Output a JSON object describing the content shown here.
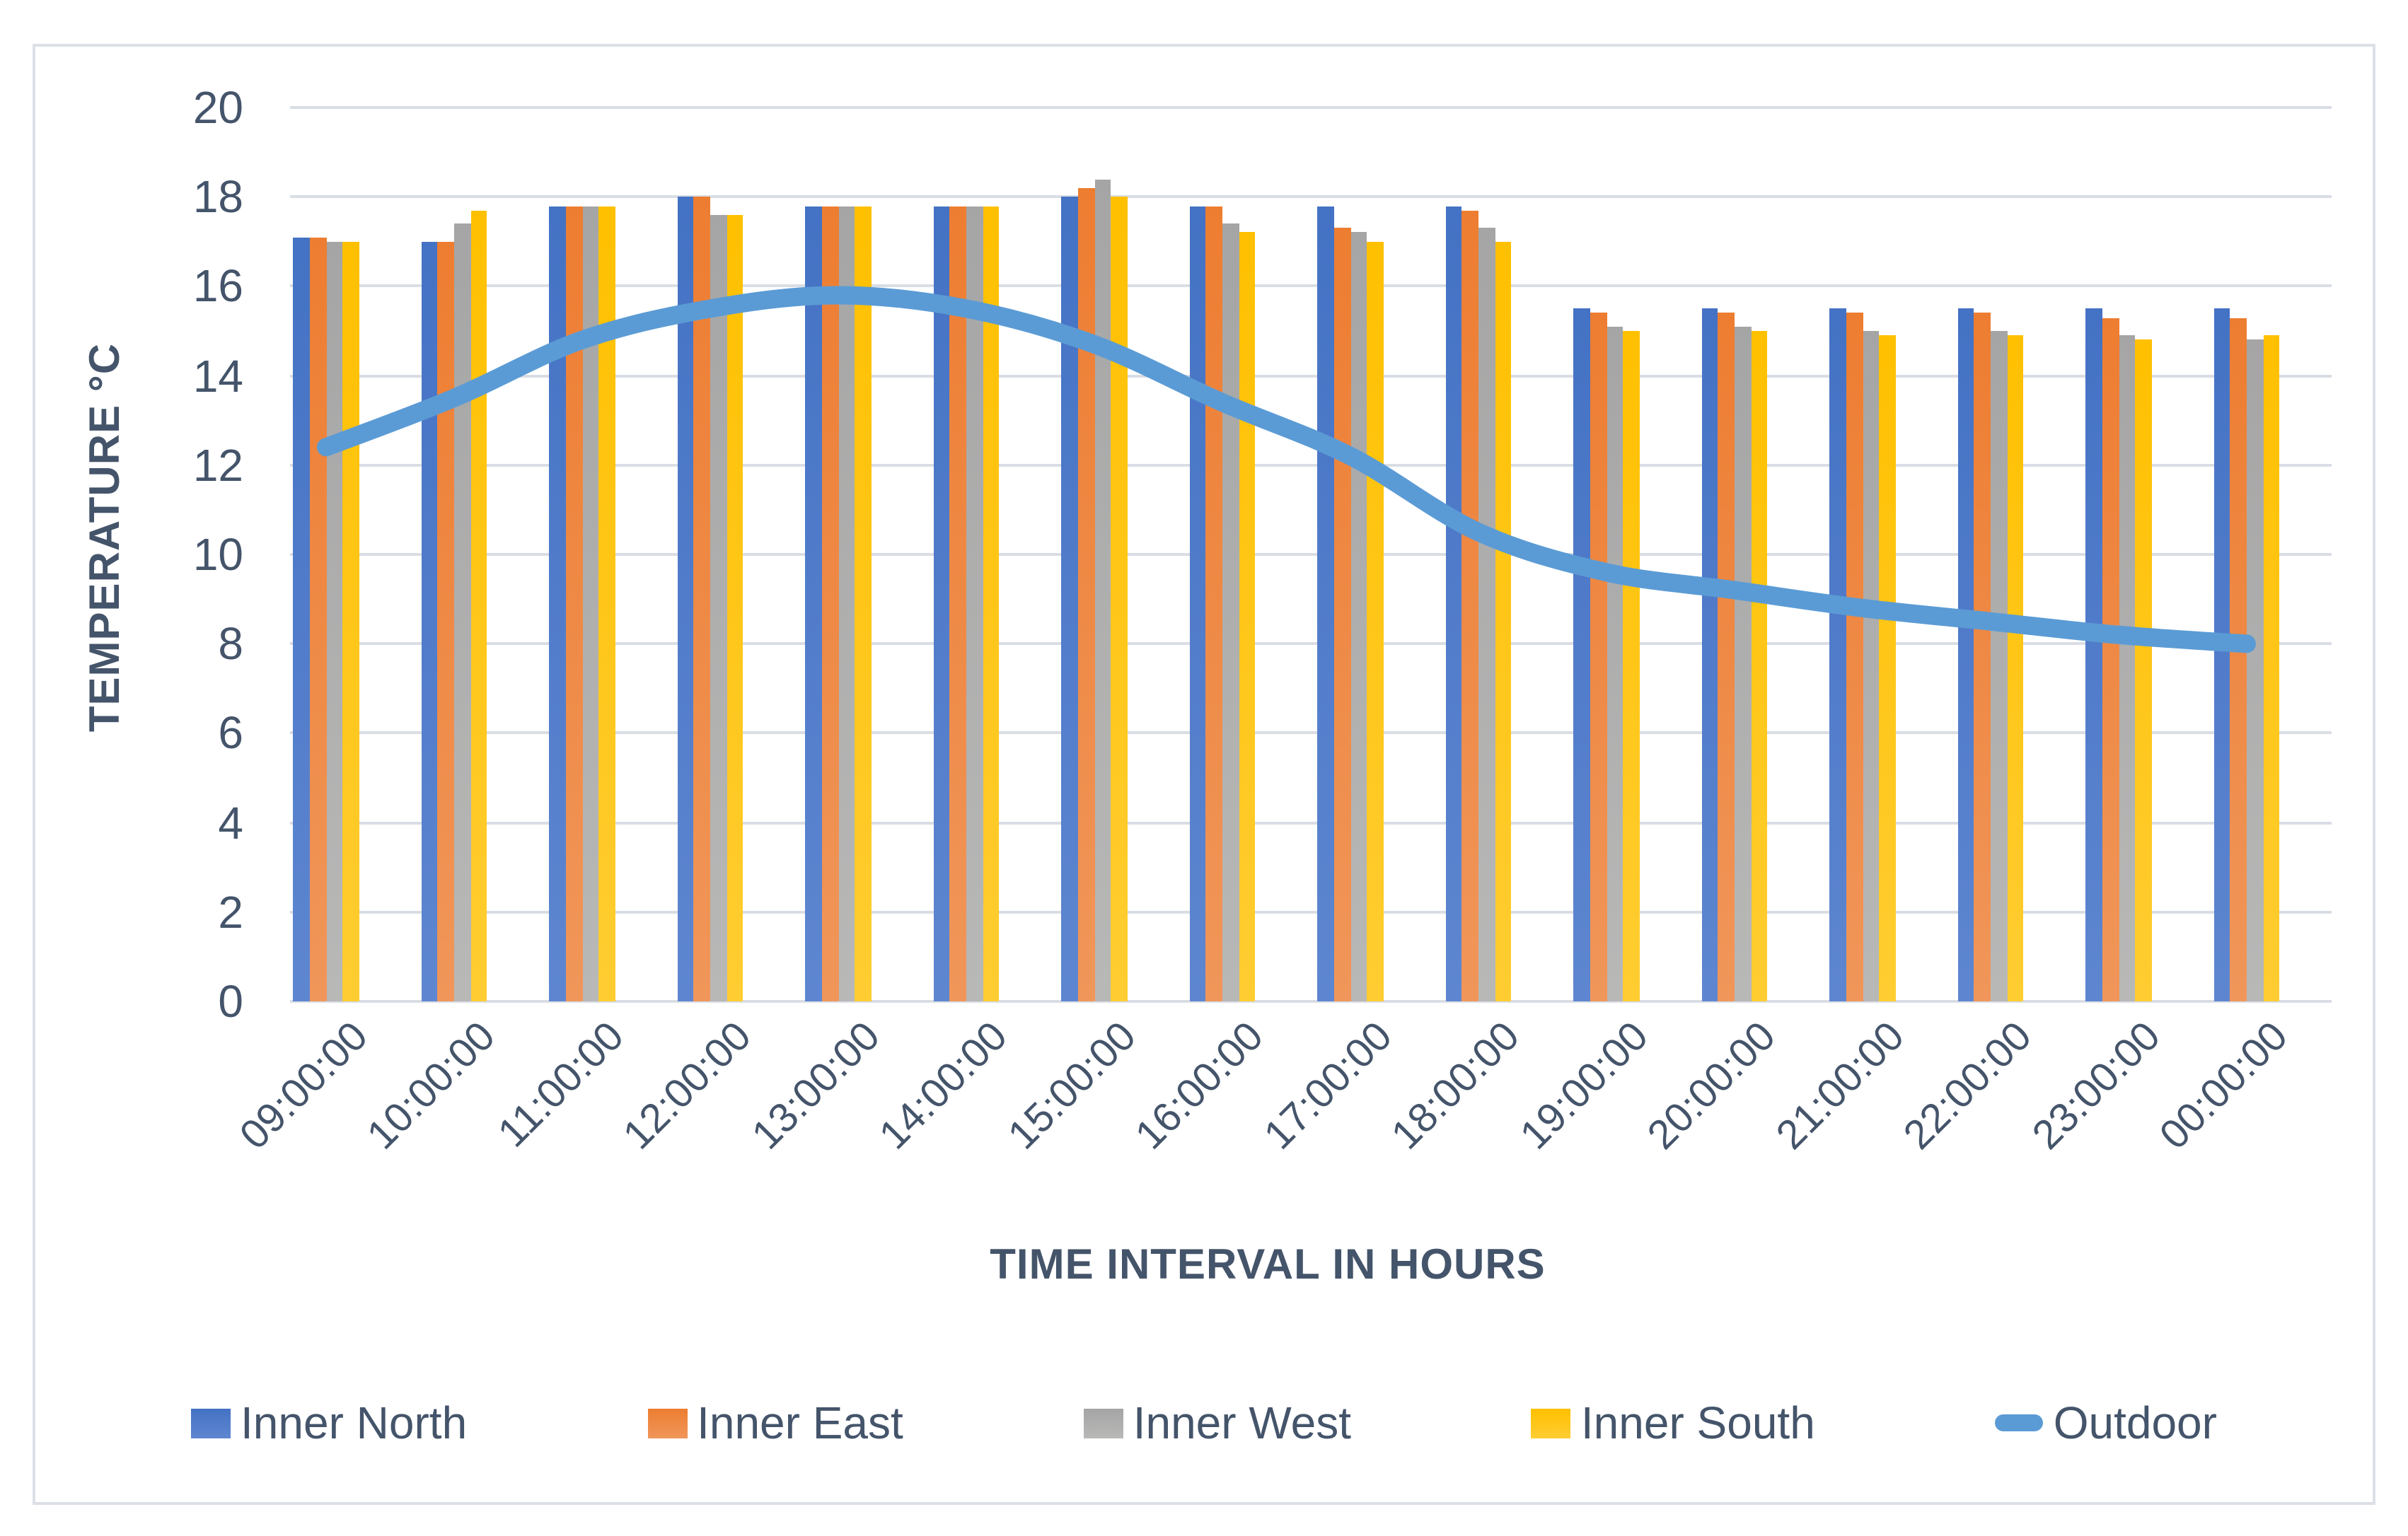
{
  "figure": {
    "title": "",
    "x_axis_title": "TIME INTERVAL IN HOURS",
    "y_axis_title": "TEMPERATURE °C"
  },
  "colors": {
    "text": "#44546A",
    "gridline": "#D9DDE4",
    "figure_border": "#DCE0E7",
    "background": "#FFFFFF",
    "inner_north": "#4472C4",
    "inner_east": "#ED7D31",
    "inner_west": "#A5A5A5",
    "inner_south": "#FFC000",
    "outdoor": "#5B9BD5"
  },
  "chart_data": {
    "type": "bar",
    "subtype": "grouped-bars-with-smoothed-line-overlay",
    "title": "",
    "xlabel": "TIME INTERVAL IN HOURS",
    "ylabel": "TEMPERATURE °C",
    "ylim": [
      0,
      20
    ],
    "ytick_step": 2,
    "grid": true,
    "legend_position": "bottom",
    "categories": [
      "09:00:00",
      "10:00:00",
      "11:00:00",
      "12:00:00",
      "13:00:00",
      "14:00:00",
      "15:00:00",
      "16:00:00",
      "17:00:00",
      "18:00:00",
      "19:00:00",
      "20:00:00",
      "21:00:00",
      "22:00:00",
      "23:00:00",
      "00:00:00"
    ],
    "series": [
      {
        "name": "Inner North",
        "type": "bar",
        "color": "#4472C4",
        "color_light": "#5E86D0",
        "values": [
          17.1,
          17.0,
          17.8,
          18.0,
          17.8,
          17.8,
          18.0,
          17.8,
          17.8,
          17.8,
          15.5,
          15.5,
          15.5,
          15.5,
          15.5,
          15.5
        ]
      },
      {
        "name": "Inner East",
        "type": "bar",
        "color": "#ED7D31",
        "color_light": "#F0965A",
        "values": [
          17.1,
          17.0,
          17.8,
          18.0,
          17.8,
          17.8,
          18.2,
          17.8,
          17.3,
          17.7,
          15.4,
          15.4,
          15.4,
          15.4,
          15.3,
          15.3
        ]
      },
      {
        "name": "Inner West",
        "type": "bar",
        "color": "#A5A5A5",
        "color_light": "#B8B8B7",
        "values": [
          17.0,
          17.4,
          17.8,
          17.6,
          17.8,
          17.8,
          18.4,
          17.4,
          17.2,
          17.3,
          15.1,
          15.1,
          15.0,
          15.0,
          14.9,
          14.8
        ]
      },
      {
        "name": "Inner South",
        "type": "bar",
        "color": "#FFC000",
        "color_light": "#FFCD32",
        "values": [
          17.0,
          17.7,
          17.8,
          17.6,
          17.8,
          17.8,
          18.0,
          17.2,
          17.0,
          17.0,
          15.0,
          15.0,
          14.9,
          14.9,
          14.8,
          14.9
        ]
      },
      {
        "name": "Outdoor",
        "type": "line",
        "color": "#5B9BD5",
        "values": [
          12.4,
          13.5,
          14.8,
          15.5,
          15.8,
          15.5,
          14.7,
          13.4,
          12.2,
          10.5,
          9.6,
          9.2,
          8.8,
          8.5,
          8.2,
          8.0
        ]
      }
    ]
  }
}
